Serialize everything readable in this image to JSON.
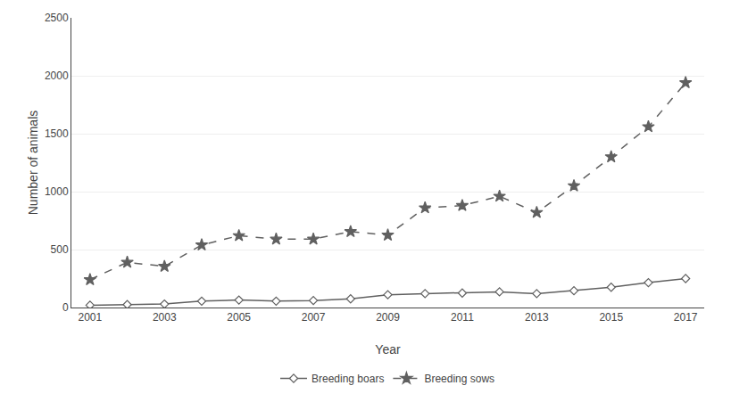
{
  "chart_data": {
    "type": "line",
    "xlabel": "Year",
    "ylabel": "Number of animals",
    "x": [
      2001,
      2002,
      2003,
      2004,
      2005,
      2006,
      2007,
      2008,
      2009,
      2010,
      2011,
      2012,
      2013,
      2014,
      2015,
      2016,
      2017
    ],
    "series": [
      {
        "name": "Breeding boars",
        "color": "#606060",
        "marker": "diamond",
        "line_style": "solid",
        "values": [
          20,
          25,
          30,
          55,
          65,
          55,
          60,
          75,
          110,
          120,
          125,
          135,
          120,
          145,
          175,
          215,
          250
        ]
      },
      {
        "name": "Breeding sows",
        "color": "#606060",
        "marker": "star",
        "line_style": "dash",
        "values": [
          240,
          390,
          355,
          540,
          620,
          590,
          590,
          655,
          625,
          860,
          880,
          960,
          820,
          1050,
          1300,
          1560,
          1940
        ]
      }
    ],
    "xlim": [
      2000.5,
      2017.5
    ],
    "xticks": [
      2001,
      2003,
      2005,
      2007,
      2009,
      2011,
      2013,
      2015,
      2017
    ],
    "ylim": [
      0,
      2500
    ],
    "yticks": [
      0,
      500,
      1000,
      1500,
      2000,
      2500
    ],
    "grid": true,
    "legend": "bottom"
  }
}
